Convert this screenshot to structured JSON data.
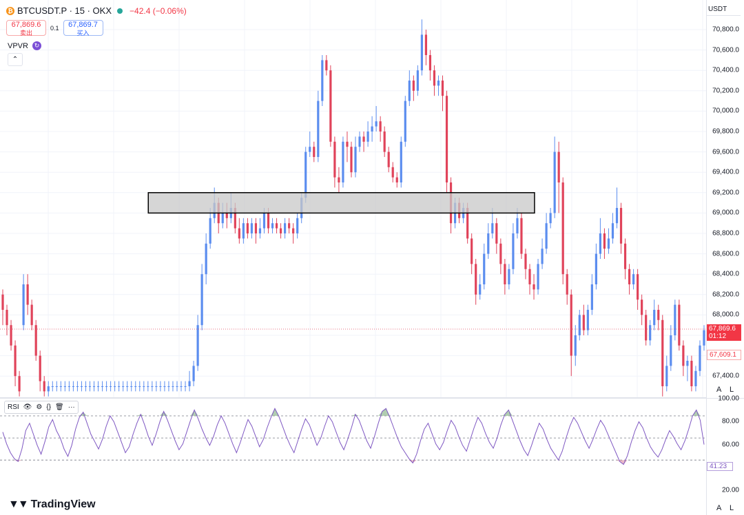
{
  "header": {
    "symbol": "BTCUSDT.P · 15 · OKX",
    "change": "−42.4 (−0.06%)",
    "sell_price": "67,869.6",
    "sell_label": "卖出",
    "spread": "0.1",
    "buy_price": "67,869.7",
    "buy_label": "买入",
    "vpvr_label": "VPVR",
    "collapse_symbol": "⌃"
  },
  "price_axis": {
    "currency": "USDT",
    "ticks": [
      "70,800.0",
      "70,600.0",
      "70,400.0",
      "70,200.0",
      "70,000.0",
      "69,800.0",
      "69,600.0",
      "69,400.0",
      "69,200.0",
      "69,000.0",
      "68,800.0",
      "68,600.0",
      "68,400.0",
      "68,200.0",
      "68,000.0",
      "67,800.0",
      "67,600.0",
      "67,400.0"
    ],
    "last_price": "67,869.6",
    "countdown": "01:12",
    "second_price": "67,609.1",
    "auto_btn": "A",
    "log_btn": "L"
  },
  "rsi": {
    "label": "RSI",
    "ticks": [
      "100.00",
      "80.00",
      "60.00",
      "20.00"
    ],
    "value": "41.23",
    "auto_btn": "A",
    "log_btn": "L"
  },
  "branding": {
    "logo_text": "TradingView"
  },
  "colors": {
    "up": "#5b8def",
    "down": "#e0435a",
    "rsi_line": "#7e57c2",
    "zone_fill": "#c8c8c8",
    "overbought_fill": "#8fb88f",
    "oversold_fill": "#e09aae"
  },
  "chart_data": {
    "type": "candlestick",
    "price_range": [
      67240,
      70960
    ],
    "candles": [
      [
        68200,
        68050,
        68250,
        67900
      ],
      [
        68050,
        67900,
        68100,
        67800
      ],
      [
        67900,
        67700,
        67950,
        67650
      ],
      [
        67700,
        67400,
        67750,
        67300
      ],
      [
        67400,
        67250,
        67450,
        67200
      ],
      [
        67900,
        68300,
        68400,
        67850
      ],
      [
        68300,
        68100,
        68400,
        68000
      ],
      [
        68100,
        67900,
        68150,
        67850
      ],
      [
        67900,
        67600,
        67950,
        67550
      ],
      [
        67600,
        67350,
        67650,
        67250
      ],
      [
        67350,
        67250,
        67400,
        67200
      ],
      [
        67250,
        67300,
        67350,
        67200
      ],
      [
        67300,
        67300,
        67350,
        67250
      ],
      [
        67300,
        67300,
        67350,
        67250
      ],
      [
        67300,
        67300,
        67350,
        67250
      ],
      [
        67300,
        67300,
        67350,
        67250
      ],
      [
        67300,
        67300,
        67350,
        67250
      ],
      [
        67300,
        67300,
        67350,
        67250
      ],
      [
        67300,
        67300,
        67350,
        67250
      ],
      [
        67300,
        67300,
        67350,
        67250
      ],
      [
        67300,
        67300,
        67350,
        67250
      ],
      [
        67300,
        67300,
        67350,
        67250
      ],
      [
        67300,
        67300,
        67350,
        67250
      ],
      [
        67300,
        67300,
        67350,
        67250
      ],
      [
        67300,
        67300,
        67350,
        67250
      ],
      [
        67300,
        67300,
        67350,
        67250
      ],
      [
        67300,
        67300,
        67350,
        67250
      ],
      [
        67300,
        67300,
        67350,
        67250
      ],
      [
        67300,
        67300,
        67350,
        67250
      ],
      [
        67300,
        67300,
        67350,
        67250
      ],
      [
        67300,
        67300,
        67350,
        67250
      ],
      [
        67300,
        67300,
        67350,
        67250
      ],
      [
        67300,
        67300,
        67350,
        67250
      ],
      [
        67300,
        67300,
        67350,
        67250
      ],
      [
        67300,
        67300,
        67350,
        67250
      ],
      [
        67300,
        67300,
        67350,
        67250
      ],
      [
        67300,
        67300,
        67350,
        67250
      ],
      [
        67300,
        67300,
        67350,
        67250
      ],
      [
        67300,
        67300,
        67350,
        67250
      ],
      [
        67300,
        67300,
        67350,
        67250
      ],
      [
        67300,
        67300,
        67350,
        67250
      ],
      [
        67300,
        67300,
        67350,
        67250
      ],
      [
        67300,
        67300,
        67350,
        67250
      ],
      [
        67300,
        67300,
        67350,
        67250
      ],
      [
        67300,
        67300,
        67350,
        67250
      ],
      [
        67300,
        67350,
        67450,
        67250
      ],
      [
        67350,
        67500,
        67550,
        67300
      ],
      [
        67500,
        67900,
        68000,
        67450
      ],
      [
        67900,
        68400,
        68500,
        67850
      ],
      [
        68400,
        68700,
        68800,
        68300
      ],
      [
        68700,
        68950,
        69050,
        68650
      ],
      [
        68950,
        69100,
        69250,
        68900
      ],
      [
        69100,
        68900,
        69150,
        68800
      ],
      [
        68900,
        69000,
        69100,
        68850
      ],
      [
        69000,
        68950,
        69100,
        68850
      ],
      [
        68950,
        69050,
        69200,
        68900
      ],
      [
        69050,
        68850,
        69100,
        68800
      ],
      [
        68850,
        68750,
        68950,
        68700
      ],
      [
        68750,
        68900,
        68950,
        68700
      ],
      [
        68900,
        68800,
        68950,
        68750
      ],
      [
        68800,
        68900,
        68950,
        68750
      ],
      [
        68900,
        68800,
        68950,
        68700
      ],
      [
        68800,
        68850,
        68950,
        68750
      ],
      [
        68850,
        69000,
        69050,
        68800
      ],
      [
        69000,
        68850,
        69050,
        68800
      ],
      [
        68850,
        68900,
        68950,
        68800
      ],
      [
        68900,
        68850,
        68950,
        68800
      ],
      [
        68850,
        68800,
        68900,
        68750
      ],
      [
        68800,
        68900,
        68950,
        68750
      ],
      [
        68900,
        68850,
        68950,
        68800
      ],
      [
        68850,
        68800,
        68900,
        68700
      ],
      [
        68800,
        68950,
        69000,
        68750
      ],
      [
        68950,
        69150,
        69200,
        68900
      ],
      [
        69150,
        69600,
        69650,
        69100
      ],
      [
        69600,
        69650,
        69800,
        69550
      ],
      [
        69650,
        69550,
        69700,
        69500
      ],
      [
        69550,
        70100,
        70200,
        69500
      ],
      [
        70100,
        70500,
        70550,
        70050
      ],
      [
        70500,
        70400,
        70550,
        70350
      ],
      [
        70400,
        69700,
        70450,
        69650
      ],
      [
        69700,
        69350,
        69750,
        69250
      ],
      [
        69350,
        69300,
        69450,
        69200
      ],
      [
        69300,
        69700,
        69750,
        69250
      ],
      [
        69700,
        69650,
        69800,
        69500
      ],
      [
        69650,
        69400,
        69700,
        69350
      ],
      [
        69400,
        69650,
        69750,
        69350
      ],
      [
        69650,
        69750,
        69800,
        69600
      ],
      [
        69750,
        69700,
        69800,
        69600
      ],
      [
        69700,
        69800,
        69900,
        69650
      ],
      [
        69800,
        69850,
        69950,
        69700
      ],
      [
        69850,
        69900,
        70050,
        69800
      ],
      [
        69900,
        69800,
        69950,
        69700
      ],
      [
        69800,
        69600,
        69850,
        69550
      ],
      [
        69600,
        69450,
        69650,
        69400
      ],
      [
        69450,
        69350,
        69500,
        69300
      ],
      [
        69350,
        69300,
        69400,
        69250
      ],
      [
        69300,
        69700,
        69750,
        69250
      ],
      [
        69700,
        70100,
        70150,
        69650
      ],
      [
        70100,
        70300,
        70400,
        70050
      ],
      [
        70300,
        70200,
        70350,
        70100
      ],
      [
        70200,
        70400,
        70450,
        70150
      ],
      [
        70400,
        70750,
        70900,
        70350
      ],
      [
        70750,
        70550,
        70800,
        70450
      ],
      [
        70550,
        70400,
        70600,
        70300
      ],
      [
        70400,
        70250,
        70450,
        70150
      ],
      [
        70250,
        70300,
        70350,
        70150
      ],
      [
        70300,
        70150,
        70350,
        70000
      ],
      [
        70150,
        69300,
        70200,
        69200
      ],
      [
        69300,
        68900,
        69350,
        68800
      ],
      [
        68900,
        69100,
        69150,
        68850
      ],
      [
        69100,
        68950,
        69150,
        68900
      ],
      [
        68950,
        69050,
        69100,
        68900
      ],
      [
        69050,
        68750,
        69100,
        68700
      ],
      [
        68750,
        68500,
        68800,
        68400
      ],
      [
        68500,
        68200,
        68550,
        68100
      ],
      [
        68200,
        68300,
        68400,
        68150
      ],
      [
        68300,
        68600,
        68700,
        68250
      ],
      [
        68600,
        68800,
        68900,
        68550
      ],
      [
        68800,
        68900,
        69050,
        68750
      ],
      [
        68900,
        68700,
        68950,
        68600
      ],
      [
        68700,
        68500,
        68750,
        68400
      ],
      [
        68500,
        68300,
        68550,
        68200
      ],
      [
        68300,
        68450,
        68500,
        68250
      ],
      [
        68450,
        68800,
        68900,
        68400
      ],
      [
        68800,
        68950,
        69050,
        68750
      ],
      [
        68950,
        68600,
        69000,
        68550
      ],
      [
        68600,
        68450,
        68650,
        68350
      ],
      [
        68450,
        68300,
        68500,
        68200
      ],
      [
        68300,
        68250,
        68400,
        68150
      ],
      [
        68250,
        68500,
        68550,
        68200
      ],
      [
        68500,
        68650,
        68750,
        68450
      ],
      [
        68650,
        68900,
        69000,
        68600
      ],
      [
        68900,
        69000,
        69050,
        68850
      ],
      [
        69000,
        69600,
        69750,
        68950
      ],
      [
        69600,
        69300,
        69700,
        69000
      ],
      [
        69300,
        68400,
        69350,
        68300
      ],
      [
        68400,
        68200,
        68450,
        68100
      ],
      [
        68200,
        67600,
        68250,
        67400
      ],
      [
        67600,
        67800,
        67900,
        67500
      ],
      [
        67800,
        68000,
        68050,
        67750
      ],
      [
        68000,
        67850,
        68100,
        67800
      ],
      [
        67850,
        68050,
        68100,
        67800
      ],
      [
        68050,
        68300,
        68400,
        68000
      ],
      [
        68300,
        68600,
        68700,
        68250
      ],
      [
        68600,
        68800,
        68950,
        68550
      ],
      [
        68800,
        68650,
        68850,
        68550
      ],
      [
        68650,
        68750,
        68850,
        68600
      ],
      [
        68750,
        68900,
        69000,
        68700
      ],
      [
        68900,
        69050,
        69250,
        68850
      ],
      [
        69050,
        68700,
        69100,
        68600
      ],
      [
        68700,
        68450,
        68750,
        68350
      ],
      [
        68450,
        68300,
        68500,
        68200
      ],
      [
        68300,
        68400,
        68450,
        68250
      ],
      [
        68400,
        68150,
        68450,
        68050
      ],
      [
        68150,
        68000,
        68200,
        67900
      ],
      [
        68000,
        67750,
        68050,
        67700
      ],
      [
        67750,
        67900,
        67950,
        67700
      ],
      [
        67900,
        68050,
        68150,
        67850
      ],
      [
        68050,
        67950,
        68100,
        67850
      ],
      [
        67950,
        67300,
        68000,
        67200
      ],
      [
        67300,
        67500,
        67600,
        67250
      ],
      [
        67500,
        67800,
        67900,
        67450
      ],
      [
        67800,
        68100,
        68150,
        67750
      ],
      [
        68100,
        67700,
        68150,
        67650
      ],
      [
        67700,
        67500,
        67750,
        67400
      ],
      [
        67500,
        67550,
        67600,
        67350
      ],
      [
        67550,
        67300,
        67600,
        67250
      ],
      [
        67300,
        67450,
        67500,
        67250
      ],
      [
        67450,
        67700,
        67750,
        67400
      ],
      [
        67700,
        67850,
        67900,
        67650
      ]
    ],
    "zone": {
      "price_low": 69000,
      "price_high": 69200,
      "x_start": 0.21,
      "x_end": 0.757
    },
    "rsi_series": [
      58,
      42,
      30,
      22,
      18,
      35,
      60,
      70,
      55,
      40,
      28,
      45,
      65,
      75,
      60,
      50,
      35,
      25,
      40,
      62,
      78,
      85,
      70,
      55,
      45,
      35,
      48,
      66,
      80,
      72,
      58,
      44,
      30,
      38,
      55,
      70,
      82,
      68,
      52,
      40,
      55,
      72,
      86,
      74,
      60,
      46,
      34,
      42,
      58,
      74,
      88,
      76,
      62,
      50,
      40,
      52,
      68,
      80,
      70,
      56,
      42,
      30,
      44,
      60,
      75,
      66,
      52,
      38,
      48,
      64,
      78,
      90,
      80,
      66,
      52,
      40,
      30,
      46,
      62,
      76,
      68,
      54,
      40,
      50,
      66,
      80,
      72,
      58,
      44,
      34,
      48,
      64,
      82,
      74,
      60,
      46,
      36,
      52,
      70,
      86,
      90,
      78,
      64,
      50,
      38,
      30,
      22,
      16,
      28,
      46,
      62,
      70,
      56,
      42,
      34,
      44,
      60,
      74,
      66,
      52,
      40,
      32,
      48,
      64,
      78,
      70,
      56,
      44,
      36,
      50,
      68,
      82,
      88,
      74,
      60,
      46,
      34,
      26,
      40,
      56,
      70,
      62,
      48,
      36,
      28,
      20,
      32,
      50,
      66,
      78,
      70,
      58,
      46,
      36,
      48,
      62,
      74,
      66,
      54,
      42,
      30,
      18,
      14,
      26,
      44,
      60,
      72,
      64,
      50,
      38,
      30,
      24,
      34,
      48,
      60,
      52,
      42,
      34,
      46,
      62,
      80,
      88,
      74,
      41
    ]
  }
}
